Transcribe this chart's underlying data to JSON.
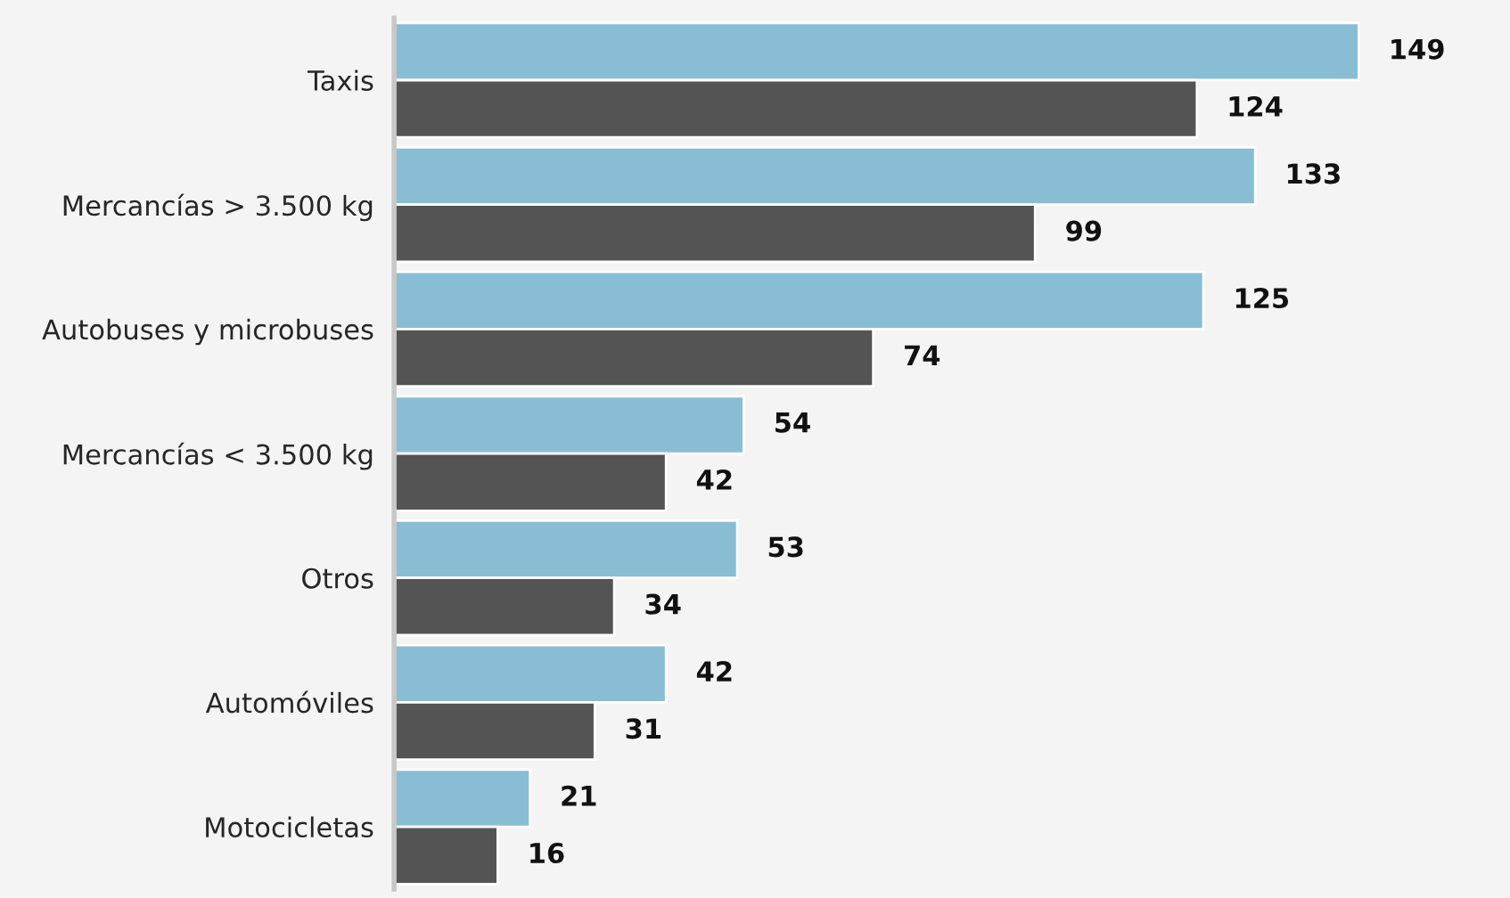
{
  "chart_data": {
    "type": "bar",
    "orientation": "horizontal",
    "data_labels": true,
    "legend": false,
    "grid": false,
    "categories": [
      "Taxis",
      "Mercancías > 3.500 kg",
      "Autobuses y microbuses",
      "Mercancías < 3.500 kg",
      "Otros",
      "Automóviles",
      "Motocicletas"
    ],
    "series": [
      {
        "color": "#89bdd3",
        "values": [
          149,
          133,
          125,
          54,
          53,
          42,
          21
        ]
      },
      {
        "color": "#545454",
        "values": [
          124,
          99,
          74,
          42,
          34,
          31,
          16
        ]
      }
    ]
  }
}
